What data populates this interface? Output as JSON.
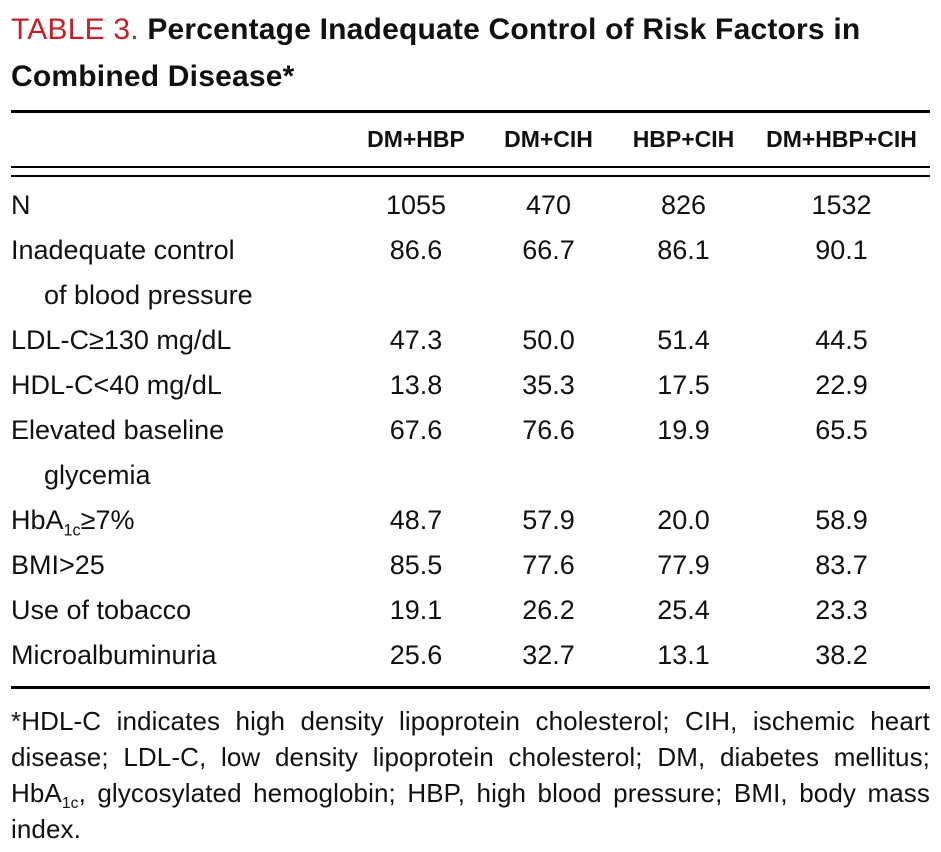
{
  "colors": {
    "accent": "#c32127",
    "text": "#111111"
  },
  "title": {
    "label": "TABLE 3.",
    "text": "Percentage Inadequate Control of Risk Factors in Combined Disease*"
  },
  "table": {
    "columns": [
      "DM+HBP",
      "DM+CIH",
      "HBP+CIH",
      "DM+HBP+CIH"
    ],
    "rows": [
      {
        "label": "N",
        "values": [
          "1055",
          "470",
          "826",
          "1532"
        ]
      },
      {
        "label": "Inadequate control",
        "label2": "of blood pressure",
        "values": [
          "86.6",
          "66.7",
          "86.1",
          "90.1"
        ]
      },
      {
        "label": "LDL-C≥130 mg/dL",
        "values": [
          "47.3",
          "50.0",
          "51.4",
          "44.5"
        ]
      },
      {
        "label": "HDL-C<40 mg/dL",
        "values": [
          "13.8",
          "35.3",
          "17.5",
          "22.9"
        ]
      },
      {
        "label": "Elevated baseline",
        "label2": "glycemia",
        "values": [
          "67.6",
          "76.6",
          "19.9",
          "65.5"
        ]
      },
      {
        "label_pre": "HbA",
        "label_sub": "1c",
        "label_post": "≥7%",
        "values": [
          "48.7",
          "57.9",
          "20.0",
          "58.9"
        ]
      },
      {
        "label": "BMI>25",
        "values": [
          "85.5",
          "77.6",
          "77.9",
          "83.7"
        ]
      },
      {
        "label": "Use of tobacco",
        "values": [
          "19.1",
          "26.2",
          "25.4",
          "23.3"
        ]
      },
      {
        "label": "Microalbuminuria",
        "values": [
          "25.6",
          "32.7",
          "13.1",
          "38.2"
        ]
      }
    ]
  },
  "footnote": {
    "part1": "*HDL-C indicates high density lipoprotein cholesterol; CIH, ischemic heart disease; LDL-C, low density lipoprotein cholesterol; DM, diabetes mellitus; HbA",
    "sub": "1c",
    "part2": ", glycosylated hemoglobin; HBP, high blood pressure; BMI, body mass index."
  }
}
